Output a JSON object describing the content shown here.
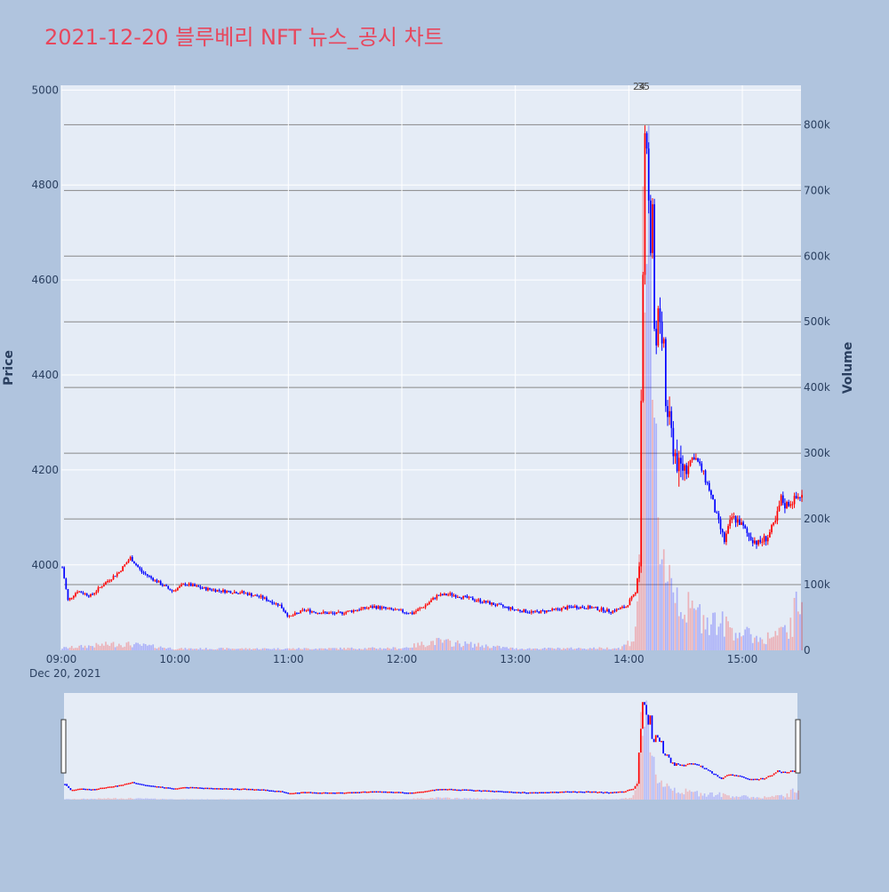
{
  "chart_data": {
    "type": "candlestick",
    "title": "2021-12-20 블루베리 NFT 뉴스_공시 차트",
    "y_axis_label": "Price",
    "y2_axis_label": "Volume",
    "x_tick_labels": [
      "09:00",
      "10:00",
      "11:00",
      "12:00",
      "13:00",
      "14:00",
      "15:00"
    ],
    "x_date_label": "Dec 20, 2021",
    "y_ticks": [
      4000,
      4200,
      4400,
      4600,
      4800,
      5000
    ],
    "y_range": [
      3820,
      5010
    ],
    "y2_tick_labels": [
      "0",
      "100k",
      "200k",
      "300k",
      "400k",
      "500k",
      "600k",
      "700k",
      "800k"
    ],
    "y2_ticks": [
      0,
      100000,
      200000,
      300000,
      400000,
      500000,
      600000,
      700000,
      800000
    ],
    "y2_range": [
      0,
      860000
    ],
    "x_range": [
      "09:00",
      "15:31"
    ],
    "annotations": [
      "24",
      "35"
    ],
    "colors": {
      "up": "#ff0000",
      "down": "#0000ff",
      "title": "#e8465c",
      "background": "#b0c4de",
      "plot": "#e5ecf6"
    },
    "price_path": [
      [
        "09:00",
        3995
      ],
      [
        "09:03",
        3925
      ],
      [
        "09:08",
        3945
      ],
      [
        "09:15",
        3935
      ],
      [
        "09:22",
        3960
      ],
      [
        "09:30",
        3985
      ],
      [
        "09:36",
        4015
      ],
      [
        "09:42",
        3985
      ],
      [
        "09:50",
        3965
      ],
      [
        "09:58",
        3945
      ],
      [
        "10:05",
        3960
      ],
      [
        "10:15",
        3950
      ],
      [
        "10:25",
        3945
      ],
      [
        "10:35",
        3942
      ],
      [
        "10:45",
        3932
      ],
      [
        "10:55",
        3915
      ],
      [
        "11:00",
        3890
      ],
      [
        "11:08",
        3905
      ],
      [
        "11:15",
        3900
      ],
      [
        "11:25",
        3897
      ],
      [
        "11:35",
        3905
      ],
      [
        "11:45",
        3912
      ],
      [
        "11:55",
        3905
      ],
      [
        "12:05",
        3898
      ],
      [
        "12:12",
        3915
      ],
      [
        "12:18",
        3935
      ],
      [
        "12:25",
        3938
      ],
      [
        "12:32",
        3932
      ],
      [
        "12:40",
        3925
      ],
      [
        "12:50",
        3915
      ],
      [
        "13:00",
        3905
      ],
      [
        "13:10",
        3900
      ],
      [
        "13:20",
        3905
      ],
      [
        "13:30",
        3912
      ],
      [
        "13:40",
        3910
      ],
      [
        "13:50",
        3902
      ],
      [
        "13:58",
        3912
      ],
      [
        "14:00",
        3925
      ],
      [
        "14:03",
        3940
      ],
      [
        "14:05",
        4010
      ],
      [
        "14:06",
        4350
      ],
      [
        "14:07",
        4620
      ],
      [
        "14:08",
        4900
      ],
      [
        "14:09",
        4860
      ],
      [
        "14:10",
        4770
      ],
      [
        "14:11",
        4640
      ],
      [
        "14:12",
        4760
      ],
      [
        "14:13",
        4520
      ],
      [
        "14:14",
        4470
      ],
      [
        "14:15",
        4560
      ],
      [
        "14:16",
        4490
      ],
      [
        "14:17",
        4440
      ],
      [
        "14:18",
        4480
      ],
      [
        "14:19",
        4330
      ],
      [
        "14:20",
        4320
      ],
      [
        "14:23",
        4250
      ],
      [
        "14:26",
        4200
      ],
      [
        "14:30",
        4210
      ],
      [
        "14:34",
        4230
      ],
      [
        "14:38",
        4200
      ],
      [
        "14:42",
        4160
      ],
      [
        "14:46",
        4100
      ],
      [
        "14:50",
        4050
      ],
      [
        "14:54",
        4100
      ],
      [
        "14:58",
        4090
      ],
      [
        "15:03",
        4060
      ],
      [
        "15:08",
        4045
      ],
      [
        "15:13",
        4060
      ],
      [
        "15:17",
        4090
      ],
      [
        "15:20",
        4140
      ],
      [
        "15:22",
        4125
      ],
      [
        "15:30",
        4145
      ]
    ],
    "volume_path": [
      [
        "09:00",
        4000
      ],
      [
        "09:30",
        12000
      ],
      [
        "09:45",
        8000
      ],
      [
        "10:00",
        3000
      ],
      [
        "11:00",
        3000
      ],
      [
        "12:00",
        4000
      ],
      [
        "12:17",
        16000
      ],
      [
        "13:00",
        3000
      ],
      [
        "13:55",
        4000
      ],
      [
        "14:02",
        20000
      ],
      [
        "14:05",
        120000
      ],
      [
        "14:06",
        500000
      ],
      [
        "14:07",
        840000
      ],
      [
        "14:08",
        830000
      ],
      [
        "14:09",
        740000
      ],
      [
        "14:10",
        620000
      ],
      [
        "14:12",
        400000
      ],
      [
        "14:15",
        260000
      ],
      [
        "14:17",
        190000
      ],
      [
        "14:20",
        150000
      ],
      [
        "14:24",
        110000
      ],
      [
        "14:30",
        70000
      ],
      [
        "14:40",
        60000
      ],
      [
        "14:50",
        45000
      ],
      [
        "15:00",
        30000
      ],
      [
        "15:10",
        20000
      ],
      [
        "15:20",
        30000
      ],
      [
        "15:25",
        40000
      ],
      [
        "15:30",
        95000
      ]
    ]
  }
}
